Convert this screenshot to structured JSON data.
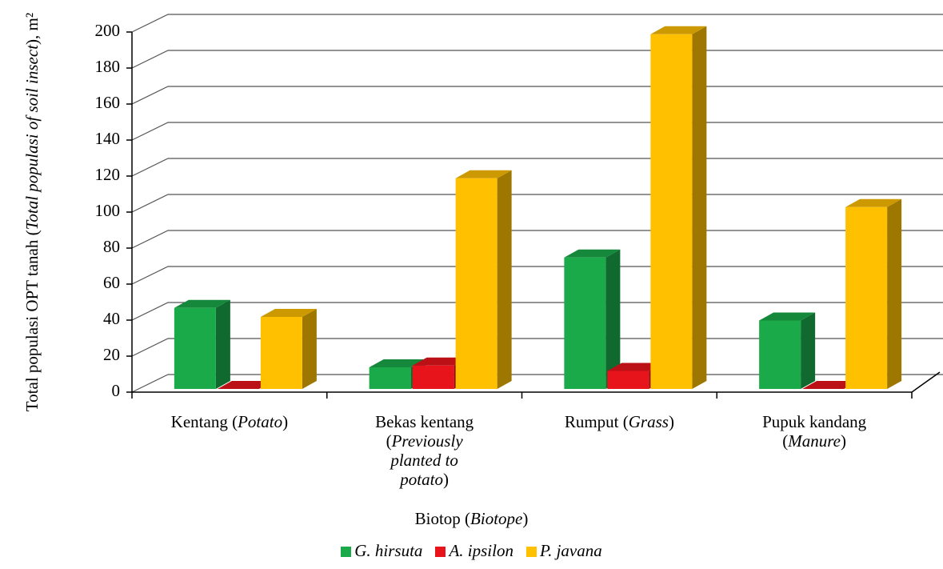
{
  "chart_data": {
    "type": "bar3d",
    "y_label": "Total populasi OPT tanah (Total populasi of soil insect), m²",
    "x_label": "Biotop (Biotope)",
    "categories": [
      "Kentang (Potato)",
      "Bekas kentang (Previously planted to potato)",
      "Rumput (Grass)",
      "Pupuk kandang (Manure)"
    ],
    "series": [
      {
        "name": "G. hirsuta",
        "color": "#1aaa4a",
        "values": [
          45,
          12,
          73,
          38
        ]
      },
      {
        "name": "A. ipsilon",
        "color": "#e8141b",
        "values": [
          0,
          13,
          10,
          0
        ]
      },
      {
        "name": "P. javana",
        "color": "#ffc000",
        "values": [
          40,
          117,
          197,
          101
        ]
      }
    ],
    "ylim": [
      0,
      200
    ],
    "yticks": [
      0,
      20,
      40,
      60,
      80,
      100,
      120,
      140,
      160,
      180,
      200
    ],
    "grid": true
  }
}
